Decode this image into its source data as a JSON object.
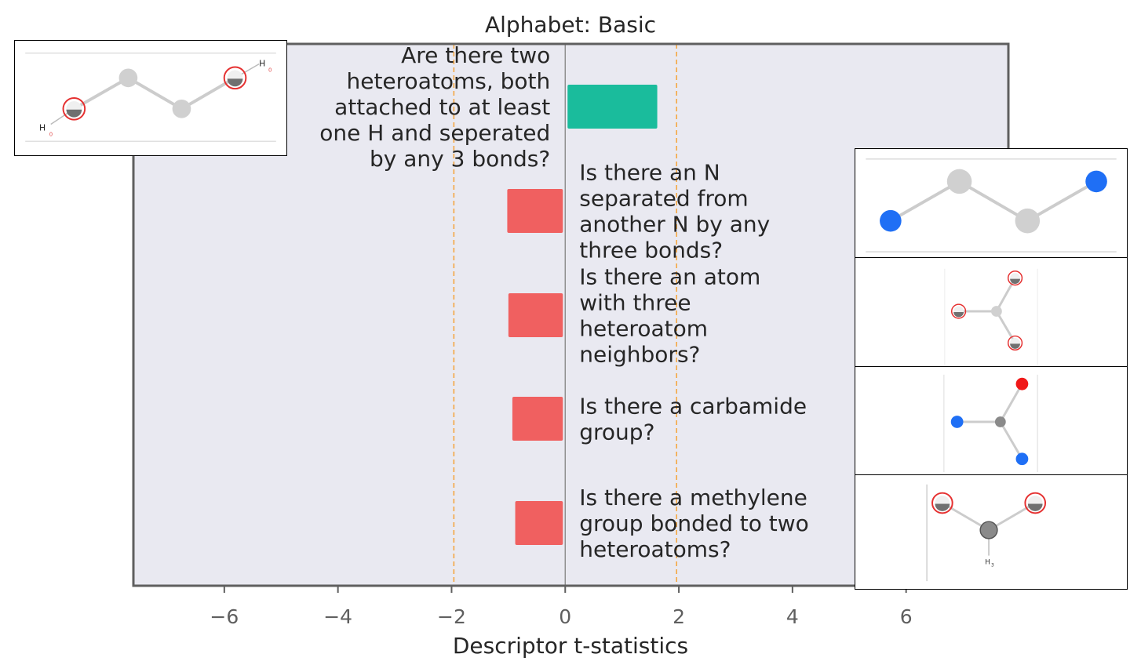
{
  "chart_data": {
    "type": "bar",
    "orientation": "horizontal",
    "title": "Alphabet: Basic",
    "xlabel": "Descriptor t-statistics",
    "ylabel": "",
    "xlim": [
      -7.6,
      7.8
    ],
    "xticks": [
      -6,
      -4,
      -2,
      0,
      2,
      4,
      6
    ],
    "xtick_labels": [
      "−6",
      "−4",
      "−2",
      "0",
      "2",
      "4",
      "6"
    ],
    "significance_lines": [
      -1.96,
      1.96
    ],
    "grid": false,
    "categories": [
      "Are there two heteroatoms, both attached to at least one H and seperated by any 3 bonds?",
      "Is there an N separated from another N by any three bonds?",
      "Is there an atom with three heteroatom neighbors?",
      "Is there a carbamide group?",
      "Is there a methylene group bonded to two heteroatoms?"
    ],
    "label_lines": [
      [
        "Are there two",
        "heteroatoms, both",
        "attached to at least",
        "one H and seperated",
        "by any 3 bonds?"
      ],
      [
        "Is there an N",
        "separated from",
        "another N by any",
        "three bonds?"
      ],
      [
        "Is there an atom",
        "with three",
        "heteroatom",
        "neighbors?"
      ],
      [
        "Is there a carbamide",
        "group?"
      ],
      [
        "Is there a methylene",
        "group bonded to two",
        "heteroatoms?"
      ]
    ],
    "values": [
      1.62,
      -1.02,
      -1.0,
      -0.93,
      -0.88
    ],
    "colors": {
      "positive": "#1abc9c",
      "negative": "#f06060",
      "threshold": "#f5a742",
      "plot_bg": "#e9e9f1",
      "frame": "#5f5f5f"
    }
  },
  "insets": [
    {
      "name": "molecule-inset-1",
      "atoms": [
        "O",
        "C",
        "C",
        "O"
      ]
    },
    {
      "name": "molecule-inset-2",
      "atoms": [
        "N",
        "C",
        "C",
        "N"
      ]
    },
    {
      "name": "molecule-inset-3",
      "atoms": [
        "C",
        "O",
        "O",
        "O"
      ]
    },
    {
      "name": "molecule-inset-4",
      "atoms": [
        "C",
        "N",
        "O",
        "N"
      ]
    },
    {
      "name": "molecule-inset-5",
      "atoms": [
        "C",
        "O",
        "O"
      ]
    }
  ]
}
